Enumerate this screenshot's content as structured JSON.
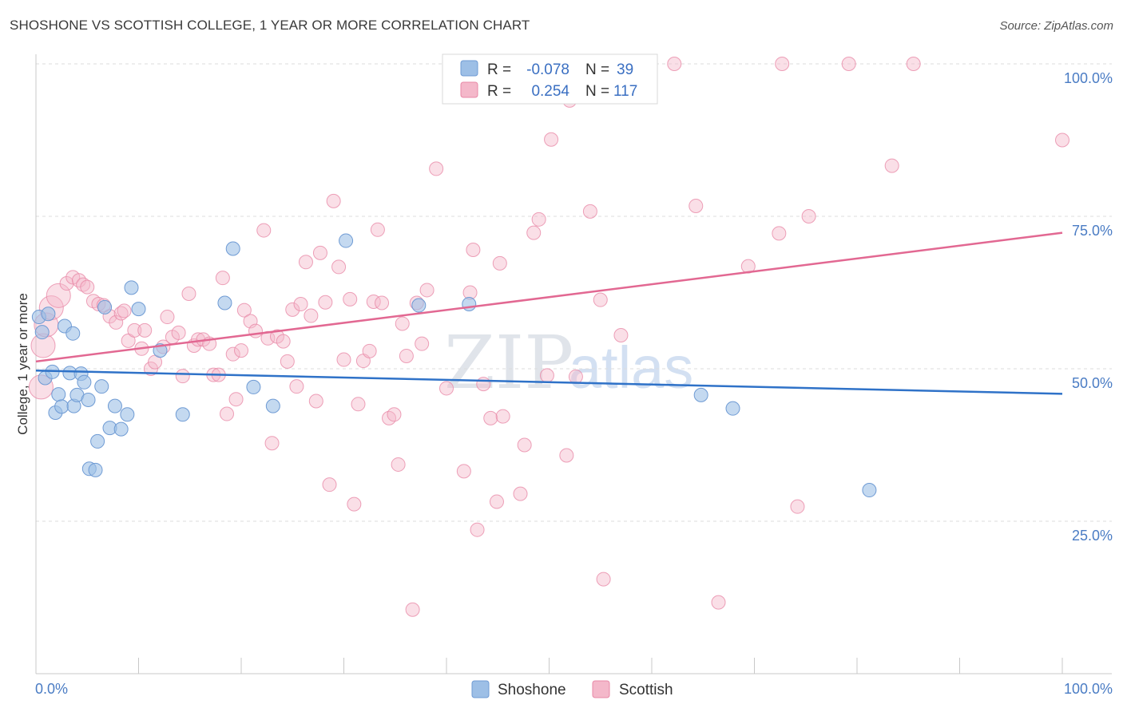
{
  "header": {
    "title": "SHOSHONE VS SCOTTISH COLLEGE, 1 YEAR OR MORE CORRELATION CHART",
    "source": "Source: ZipAtlas.com"
  },
  "colors": {
    "blue": "#9dbfe6",
    "blue_stroke": "#6f9bd4",
    "blue_line": "#2f72c8",
    "pink": "#f4b8ca",
    "pink_stroke": "#e889a7",
    "pink_line": "#e26892",
    "axis_text": "#4a7cc4"
  },
  "watermark": {
    "zip": "ZIP",
    "atlas": "atlas"
  },
  "chart_data": {
    "type": "scatter",
    "title": "SHOSHONE VS SCOTTISH COLLEGE, 1 YEAR OR MORE CORRELATION CHART",
    "xlabel": "",
    "ylabel": "College, 1 year or more",
    "xlim": [
      0,
      100
    ],
    "ylim": [
      0,
      100
    ],
    "x_tick_labels": {
      "left": "0.0%",
      "right": "100.0%"
    },
    "y_ticks": [
      {
        "value": 25,
        "label": "25.0%"
      },
      {
        "value": 50,
        "label": "50.0%"
      },
      {
        "value": 75,
        "label": "75.0%"
      },
      {
        "value": 100,
        "label": "100.0%"
      }
    ],
    "legend": {
      "entries": [
        {
          "name": "Shoshone",
          "r_label": "R =",
          "r": "-0.078",
          "n_label": "N =",
          "n": "39"
        },
        {
          "name": "Scottish",
          "r_label": "R =",
          "r": "0.254",
          "n_label": "N =",
          "n": "117"
        }
      ]
    },
    "series": [
      {
        "name": "Shoshone",
        "trend": {
          "x": [
            0,
            100
          ],
          "y": [
            49.7,
            45.9
          ]
        },
        "points": [
          [
            0.3,
            58.5
          ],
          [
            0.6,
            56.0
          ],
          [
            0.9,
            48.5
          ],
          [
            1.2,
            59.0
          ],
          [
            1.6,
            49.5
          ],
          [
            1.9,
            42.8
          ],
          [
            2.2,
            45.8
          ],
          [
            2.5,
            43.8
          ],
          [
            2.8,
            57.0
          ],
          [
            3.3,
            49.3
          ],
          [
            3.6,
            55.8
          ],
          [
            3.7,
            43.9
          ],
          [
            4.0,
            45.7
          ],
          [
            4.4,
            49.2
          ],
          [
            4.7,
            47.8
          ],
          [
            5.1,
            44.9
          ],
          [
            5.2,
            33.6
          ],
          [
            5.8,
            33.4
          ],
          [
            6.0,
            38.1
          ],
          [
            6.4,
            47.1
          ],
          [
            6.7,
            60.1
          ],
          [
            7.2,
            40.3
          ],
          [
            7.7,
            43.9
          ],
          [
            8.3,
            40.1
          ],
          [
            8.9,
            42.5
          ],
          [
            9.3,
            63.3
          ],
          [
            10.0,
            59.8
          ],
          [
            12.1,
            53.0
          ],
          [
            14.3,
            42.5
          ],
          [
            18.4,
            60.8
          ],
          [
            19.2,
            69.7
          ],
          [
            21.2,
            47.0
          ],
          [
            23.1,
            43.9
          ],
          [
            30.2,
            71.0
          ],
          [
            37.3,
            60.4
          ],
          [
            42.2,
            60.6
          ],
          [
            64.8,
            45.7
          ],
          [
            67.9,
            43.5
          ],
          [
            81.2,
            30.1
          ]
        ]
      },
      {
        "name": "Scottish",
        "trend": {
          "x": [
            0,
            100
          ],
          "y": [
            51.2,
            72.3
          ]
        },
        "points": [
          [
            0.5,
            47.0
          ],
          [
            0.7,
            53.8
          ],
          [
            1.0,
            57.2
          ],
          [
            1.5,
            60.0
          ],
          [
            2.2,
            62.0
          ],
          [
            3.0,
            64.0
          ],
          [
            3.6,
            65.0
          ],
          [
            4.2,
            64.5
          ],
          [
            4.6,
            63.8
          ],
          [
            5.0,
            63.4
          ],
          [
            5.6,
            61.1
          ],
          [
            6.1,
            60.6
          ],
          [
            6.6,
            60.4
          ],
          [
            7.2,
            58.6
          ],
          [
            7.8,
            57.6
          ],
          [
            8.3,
            59.1
          ],
          [
            8.6,
            59.5
          ],
          [
            9.0,
            54.6
          ],
          [
            9.6,
            56.3
          ],
          [
            10.3,
            53.3
          ],
          [
            10.6,
            56.3
          ],
          [
            11.2,
            50.0
          ],
          [
            11.6,
            51.1
          ],
          [
            12.4,
            53.6
          ],
          [
            12.8,
            58.5
          ],
          [
            13.3,
            55.2
          ],
          [
            13.9,
            55.9
          ],
          [
            14.3,
            48.8
          ],
          [
            14.9,
            62.3
          ],
          [
            15.4,
            53.8
          ],
          [
            15.8,
            54.8
          ],
          [
            16.3,
            54.8
          ],
          [
            16.9,
            54.1
          ],
          [
            17.3,
            49.0
          ],
          [
            17.8,
            49.0
          ],
          [
            18.2,
            64.9
          ],
          [
            18.6,
            42.6
          ],
          [
            19.2,
            52.4
          ],
          [
            19.5,
            45.0
          ],
          [
            20.0,
            53.0
          ],
          [
            20.3,
            59.6
          ],
          [
            20.9,
            57.8
          ],
          [
            21.4,
            56.2
          ],
          [
            22.2,
            72.7
          ],
          [
            22.6,
            55.0
          ],
          [
            23.0,
            37.8
          ],
          [
            23.5,
            55.3
          ],
          [
            24.1,
            54.5
          ],
          [
            24.5,
            51.2
          ],
          [
            25.0,
            59.7
          ],
          [
            25.4,
            47.1
          ],
          [
            25.8,
            60.6
          ],
          [
            26.3,
            67.5
          ],
          [
            26.8,
            58.7
          ],
          [
            27.3,
            44.7
          ],
          [
            27.7,
            69.0
          ],
          [
            28.2,
            60.9
          ],
          [
            28.6,
            31.0
          ],
          [
            29.0,
            77.5
          ],
          [
            29.5,
            66.7
          ],
          [
            30.0,
            51.5
          ],
          [
            30.6,
            61.4
          ],
          [
            31.0,
            27.8
          ],
          [
            31.4,
            44.2
          ],
          [
            31.9,
            51.3
          ],
          [
            32.5,
            52.9
          ],
          [
            32.9,
            61.0
          ],
          [
            33.3,
            72.8
          ],
          [
            33.7,
            60.8
          ],
          [
            34.4,
            41.9
          ],
          [
            34.9,
            42.5
          ],
          [
            35.3,
            34.3
          ],
          [
            35.7,
            57.4
          ],
          [
            36.1,
            52.1
          ],
          [
            36.7,
            10.5
          ],
          [
            37.1,
            60.8
          ],
          [
            37.6,
            54.1
          ],
          [
            38.1,
            62.9
          ],
          [
            39.0,
            82.8
          ],
          [
            40.0,
            46.8
          ],
          [
            41.0,
            94.7
          ],
          [
            41.7,
            33.2
          ],
          [
            42.3,
            62.5
          ],
          [
            42.6,
            69.5
          ],
          [
            43.0,
            23.6
          ],
          [
            43.6,
            47.5
          ],
          [
            44.3,
            41.9
          ],
          [
            44.9,
            28.2
          ],
          [
            45.2,
            67.3
          ],
          [
            45.5,
            42.2
          ],
          [
            47.2,
            29.5
          ],
          [
            47.6,
            37.5
          ],
          [
            48.5,
            72.3
          ],
          [
            49.0,
            74.5
          ],
          [
            49.8,
            48.9
          ],
          [
            50.2,
            87.6
          ],
          [
            51.7,
            35.8
          ],
          [
            52.0,
            94.0
          ],
          [
            52.6,
            48.7
          ],
          [
            54.0,
            75.8
          ],
          [
            55.0,
            61.3
          ],
          [
            55.3,
            15.5
          ],
          [
            57.0,
            55.5
          ],
          [
            59.0,
            100.0
          ],
          [
            59.3,
            100.0
          ],
          [
            62.2,
            100.0
          ],
          [
            64.3,
            76.7
          ],
          [
            66.5,
            11.7
          ],
          [
            69.4,
            66.8
          ],
          [
            72.4,
            72.2
          ],
          [
            72.7,
            100.0
          ],
          [
            74.2,
            27.4
          ],
          [
            75.3,
            75.0
          ],
          [
            79.2,
            100.0
          ],
          [
            83.4,
            83.3
          ],
          [
            85.5,
            100.0
          ],
          [
            100.0,
            87.5
          ]
        ]
      }
    ]
  }
}
